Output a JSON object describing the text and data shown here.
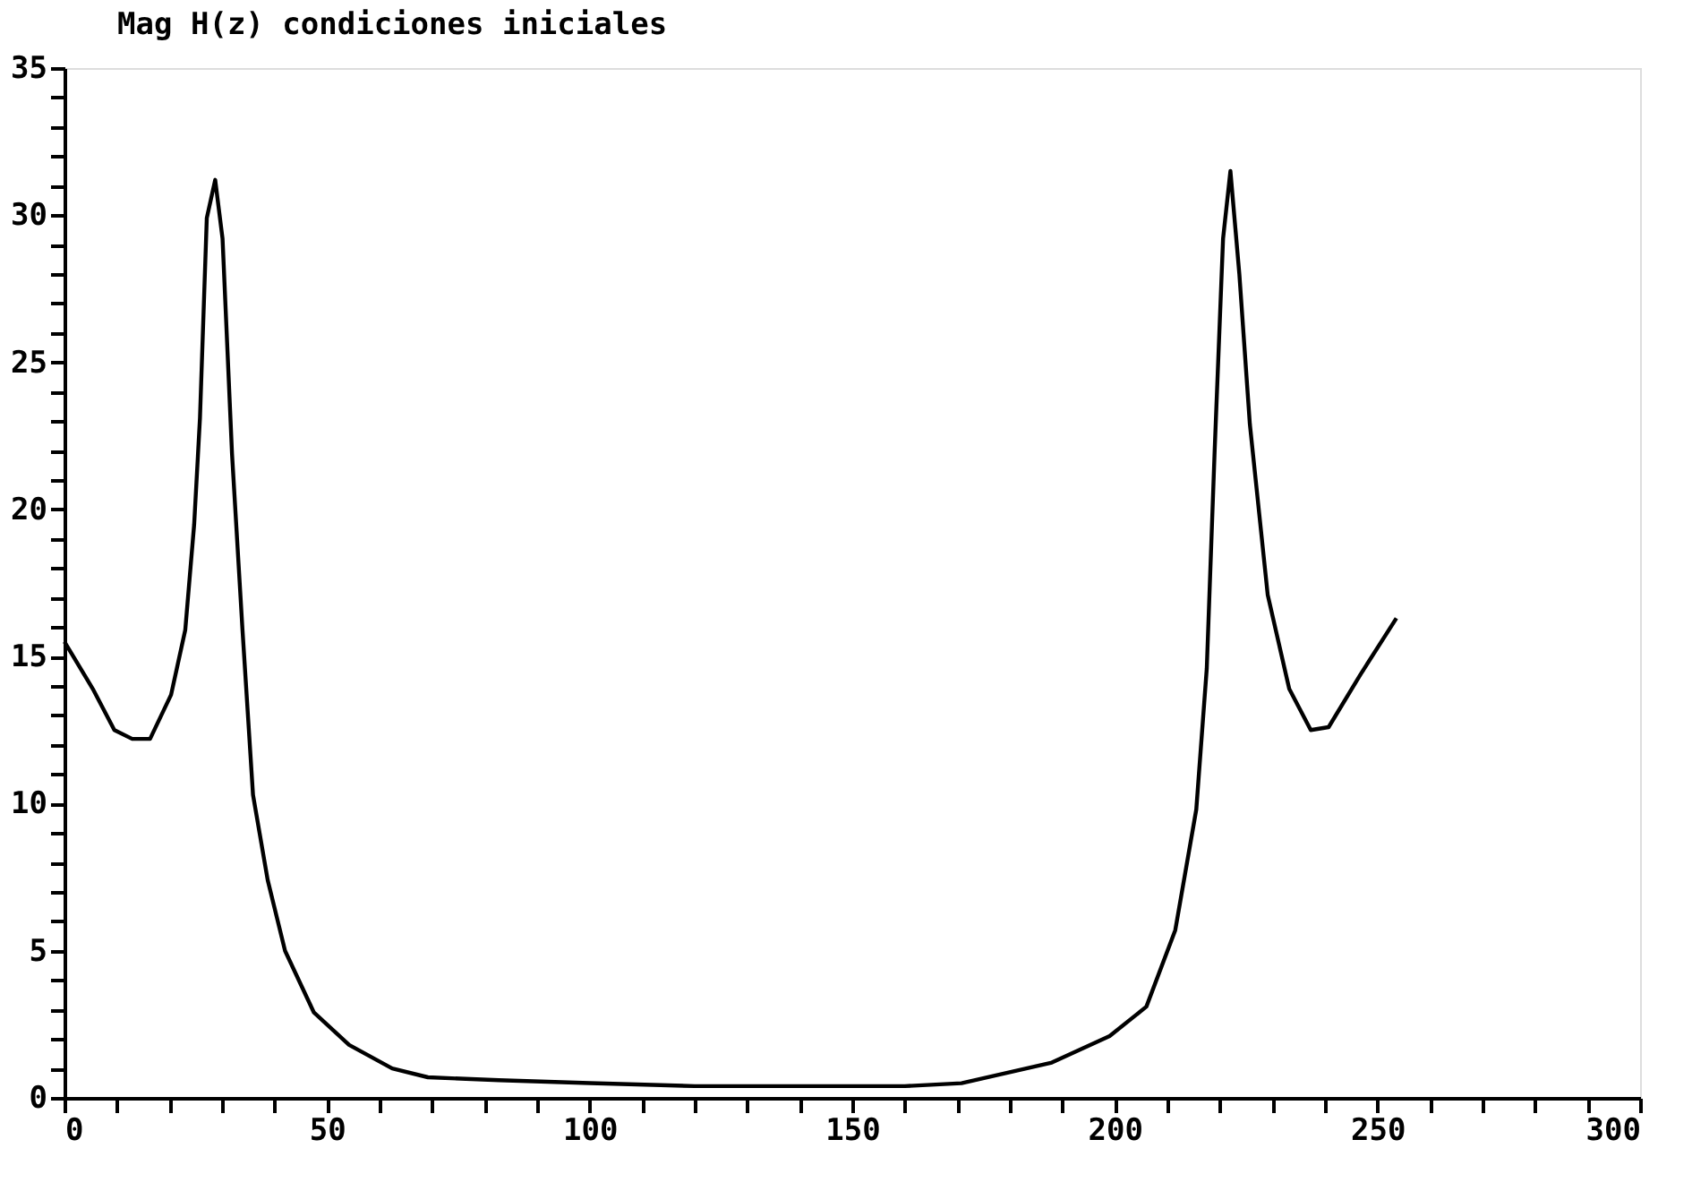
{
  "chart_data": {
    "type": "line",
    "title": "Mag H(z) condiciones iniciales",
    "x": [
      0,
      5.4,
      9.5,
      12.9,
      16.3,
      20.3,
      23,
      24.7,
      25.8,
      27.1,
      28.7,
      30.1,
      31.9,
      33.9,
      35.9,
      38.7,
      42,
      47.5,
      54.2,
      62.4,
      69.2,
      82.7,
      100,
      120,
      140,
      160,
      170.8,
      188,
      199,
      206,
      211.5,
      215.5,
      217.5,
      219,
      220.6,
      222,
      223.7,
      225.7,
      229.1,
      233.2,
      237.3,
      240.7,
      246.8,
      253.6
    ],
    "series": [
      {
        "color": "#000000",
        "values": [
          15.5,
          13.9,
          12.5,
          12.2,
          12.2,
          13.7,
          15.9,
          19.5,
          23.1,
          29.9,
          31.2,
          29.2,
          21.9,
          15.9,
          10.3,
          7.4,
          5.0,
          2.9,
          1.8,
          1.0,
          0.7,
          0.6,
          0.5,
          0.4,
          0.4,
          0.4,
          0.5,
          1.2,
          2.1,
          3.1,
          5.7,
          9.8,
          14.6,
          22,
          29.2,
          31.5,
          28,
          22.9,
          17.1,
          13.9,
          12.5,
          12.6,
          14.4,
          16.3
        ]
      }
    ],
    "xlim": [
      0,
      300
    ],
    "xticks": [
      0,
      {
        "value": 10,
        "label": null
      },
      {
        "value": 20,
        "label": null
      },
      {
        "value": 30,
        "label": null
      },
      {
        "value": 40,
        "label": null
      },
      50,
      {
        "value": 60,
        "label": null
      },
      {
        "value": 70,
        "label": null
      },
      {
        "value": 80,
        "label": null
      },
      {
        "value": 90,
        "label": null
      },
      100,
      {
        "value": 110,
        "label": null
      },
      {
        "value": 120,
        "label": null
      },
      {
        "value": 130,
        "label": null
      },
      {
        "value": 140,
        "label": null
      },
      150,
      {
        "value": 160,
        "label": null
      },
      {
        "value": 170,
        "label": null
      },
      {
        "value": 180,
        "label": null
      },
      {
        "value": 190,
        "label": null
      },
      200,
      {
        "value": 210,
        "label": null
      },
      {
        "value": 220,
        "label": null
      },
      {
        "value": 230,
        "label": null
      },
      {
        "value": 240,
        "label": null
      },
      250,
      {
        "value": 260,
        "label": null
      },
      {
        "value": 270,
        "label": null
      },
      {
        "value": 280,
        "label": null
      },
      {
        "value": 290,
        "label": null
      },
      300
    ],
    "ylim": [
      0,
      35
    ],
    "yticks": [
      0,
      {
        "value": 1,
        "label": null
      },
      {
        "value": 2,
        "label": null
      },
      {
        "value": 3,
        "label": null
      },
      {
        "value": 4,
        "label": null
      },
      5,
      {
        "value": 6,
        "label": null
      },
      {
        "value": 7,
        "label": null
      },
      {
        "value": 8,
        "label": null
      },
      {
        "value": 9,
        "label": null
      },
      10,
      {
        "value": 11,
        "label": null
      },
      {
        "value": 12,
        "label": null
      },
      {
        "value": 13,
        "label": null
      },
      {
        "value": 14,
        "label": null
      },
      15,
      {
        "value": 16,
        "label": null
      },
      {
        "value": 17,
        "label": null
      },
      {
        "value": 18,
        "label": null
      },
      {
        "value": 19,
        "label": null
      },
      20,
      {
        "value": 21,
        "label": null
      },
      {
        "value": 22,
        "label": null
      },
      {
        "value": 23,
        "label": null
      },
      {
        "value": 24,
        "label": null
      },
      25,
      {
        "value": 26,
        "label": null
      },
      {
        "value": 27,
        "label": null
      },
      {
        "value": 28,
        "label": null
      },
      {
        "value": 29,
        "label": null
      },
      30,
      {
        "value": 31,
        "label": null
      },
      {
        "value": 32,
        "label": null
      },
      {
        "value": 33,
        "label": null
      },
      {
        "value": 34,
        "label": null
      },
      35
    ],
    "grid": false,
    "marker": "none",
    "line_style": "solid"
  }
}
